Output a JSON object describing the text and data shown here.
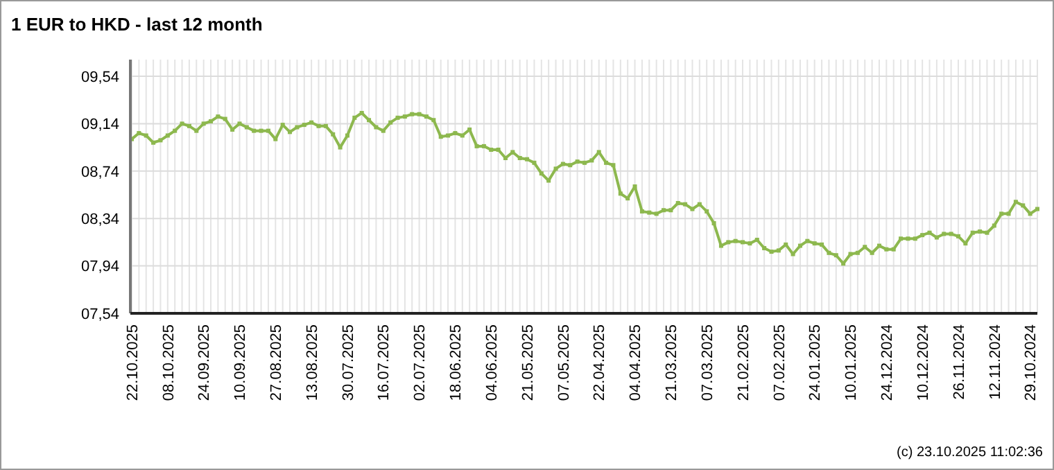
{
  "chart_data": {
    "type": "line",
    "title": "1 EUR to HKD - last 12 month",
    "categories": [
      "22.10.2025",
      null,
      null,
      null,
      null,
      "08.10.2025",
      null,
      null,
      null,
      null,
      "24.09.2025",
      null,
      null,
      null,
      null,
      "10.09.2025",
      null,
      null,
      null,
      null,
      "27.08.2025",
      null,
      null,
      null,
      null,
      "13.08.2025",
      null,
      null,
      null,
      null,
      "30.07.2025",
      null,
      null,
      null,
      null,
      "16.07.2025",
      null,
      null,
      null,
      null,
      "02.07.2025",
      null,
      null,
      null,
      null,
      "18.06.2025",
      null,
      null,
      null,
      null,
      "04.06.2025",
      null,
      null,
      null,
      null,
      "21.05.2025",
      null,
      null,
      null,
      null,
      "07.05.2025",
      null,
      null,
      null,
      null,
      "22.04.2025",
      null,
      null,
      null,
      null,
      "04.04.2025",
      null,
      null,
      null,
      null,
      "21.03.2025",
      null,
      null,
      null,
      null,
      "07.03.2025",
      null,
      null,
      null,
      null,
      "21.02.2025",
      null,
      null,
      null,
      null,
      "07.02.2025",
      null,
      null,
      null,
      null,
      "24.01.2025",
      null,
      null,
      null,
      null,
      "10.01.2025",
      null,
      null,
      null,
      null,
      "24.12.2024",
      null,
      null,
      null,
      null,
      "10.12.2024",
      null,
      null,
      null,
      null,
      "26.11.2024",
      null,
      null,
      null,
      null,
      "12.11.2024",
      null,
      null,
      null,
      null,
      "29.10.2024",
      null
    ],
    "series": [
      {
        "color": "#8db84e",
        "values": [
          9.01,
          9.06,
          9.04,
          8.98,
          9.0,
          9.04,
          9.08,
          9.14,
          9.12,
          9.08,
          9.14,
          9.16,
          9.2,
          9.18,
          9.09,
          9.14,
          9.11,
          9.08,
          9.08,
          9.08,
          9.01,
          9.13,
          9.07,
          9.11,
          9.13,
          9.15,
          9.12,
          9.12,
          9.05,
          8.94,
          9.04,
          9.19,
          9.23,
          9.17,
          9.11,
          9.08,
          9.15,
          9.19,
          9.2,
          9.22,
          9.22,
          9.2,
          9.17,
          9.03,
          9.04,
          9.06,
          9.04,
          9.09,
          8.95,
          8.95,
          8.92,
          8.92,
          8.85,
          8.9,
          8.85,
          8.84,
          8.81,
          8.72,
          8.66,
          8.76,
          8.8,
          8.79,
          8.82,
          8.81,
          8.83,
          8.9,
          8.81,
          8.79,
          8.55,
          8.51,
          8.61,
          8.4,
          8.39,
          8.38,
          8.41,
          8.41,
          8.47,
          8.46,
          8.42,
          8.46,
          8.4,
          8.3,
          8.11,
          8.14,
          8.15,
          8.14,
          8.13,
          8.16,
          8.09,
          8.06,
          8.07,
          8.12,
          8.04,
          8.11,
          8.15,
          8.13,
          8.12,
          8.05,
          8.03,
          7.96,
          8.04,
          8.05,
          8.1,
          8.05,
          8.11,
          8.08,
          8.08,
          8.17,
          8.17,
          8.17,
          8.2,
          8.22,
          8.18,
          8.21,
          8.21,
          8.19,
          8.13,
          8.22,
          8.23,
          8.22,
          8.28,
          8.38,
          8.38,
          8.48,
          8.45,
          8.38,
          8.42
        ]
      }
    ],
    "ylim": [
      7.54,
      9.54
    ],
    "yticks": [
      {
        "value": 7.54,
        "label": "07,54"
      },
      {
        "value": 7.94,
        "label": "07,94"
      },
      {
        "value": 8.34,
        "label": "08,34"
      },
      {
        "value": 8.74,
        "label": "08,74"
      },
      {
        "value": 9.14,
        "label": "09,14"
      },
      {
        "value": 9.54,
        "label": "09,54"
      }
    ],
    "grid": true,
    "marker": "square",
    "line_style": "solid",
    "annotations": [
      "(c) 23.10.2025 11:02:36"
    ]
  }
}
